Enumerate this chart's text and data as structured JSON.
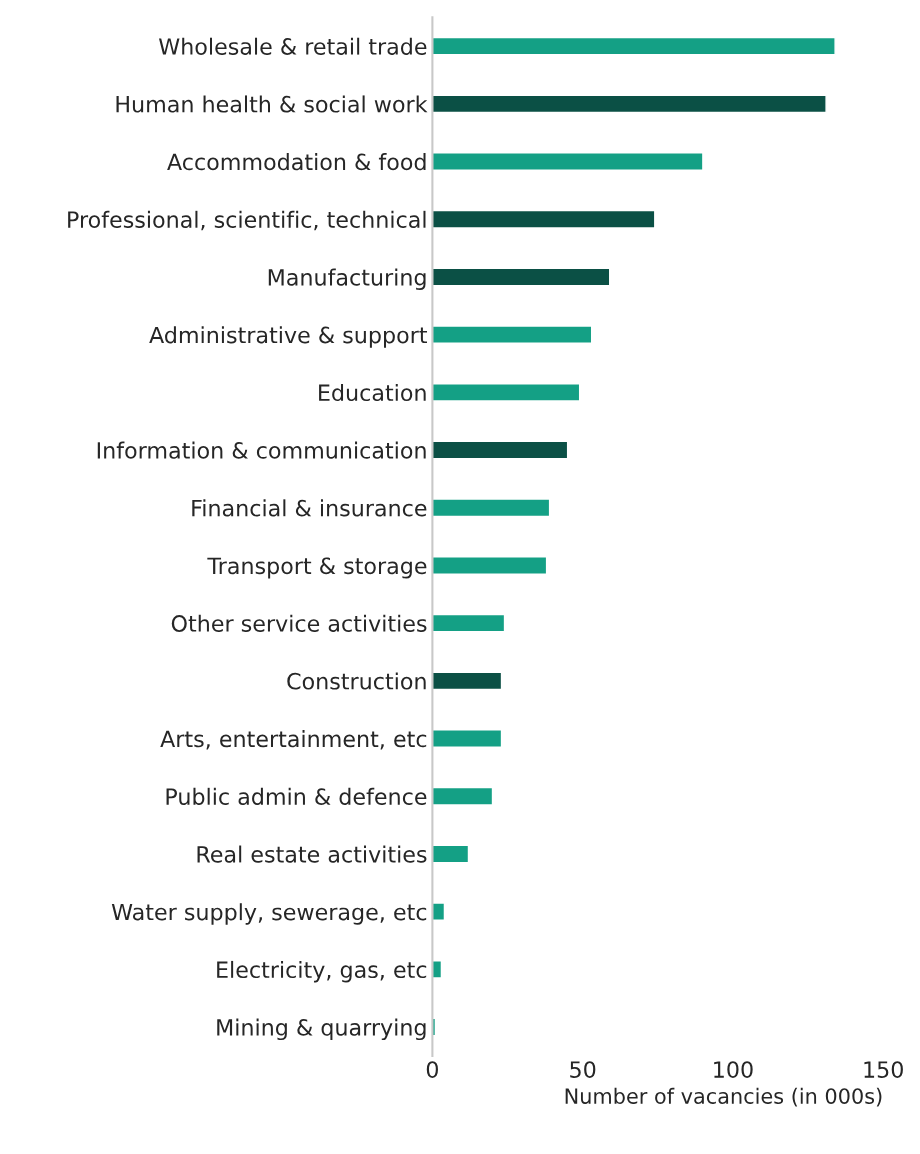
{
  "chart_data": {
    "type": "bar",
    "orientation": "horizontal",
    "xlabel": "Number of vacancies (in 000s)",
    "categories": [
      "Wholesale & retail trade",
      "Human health & social work",
      "Accommodation & food",
      "Professional, scientific, technical",
      "Manufacturing",
      "Administrative & support",
      "Education",
      "Information & communication",
      "Financial & insurance",
      "Transport & storage",
      "Other service activities",
      "Construction",
      "Arts, entertainment, etc",
      "Public admin & defence",
      "Real estate activities",
      "Water supply, sewerage, etc",
      "Electricity, gas, etc",
      "Mining & quarrying"
    ],
    "values": [
      134,
      131,
      90,
      74,
      59,
      53,
      49,
      45,
      39,
      38,
      24,
      23,
      23,
      20,
      12,
      4,
      3,
      1
    ],
    "colors": [
      "#14a085",
      "#0b5045",
      "#14a085",
      "#0b5045",
      "#0b5045",
      "#14a085",
      "#14a085",
      "#0b5045",
      "#14a085",
      "#14a085",
      "#14a085",
      "#0b5045",
      "#14a085",
      "#14a085",
      "#14a085",
      "#14a085",
      "#14a085",
      "#14a085"
    ],
    "xlim": [
      0,
      150
    ],
    "xticks": [
      0,
      50,
      100,
      150
    ],
    "grid": false,
    "legend": false
  }
}
